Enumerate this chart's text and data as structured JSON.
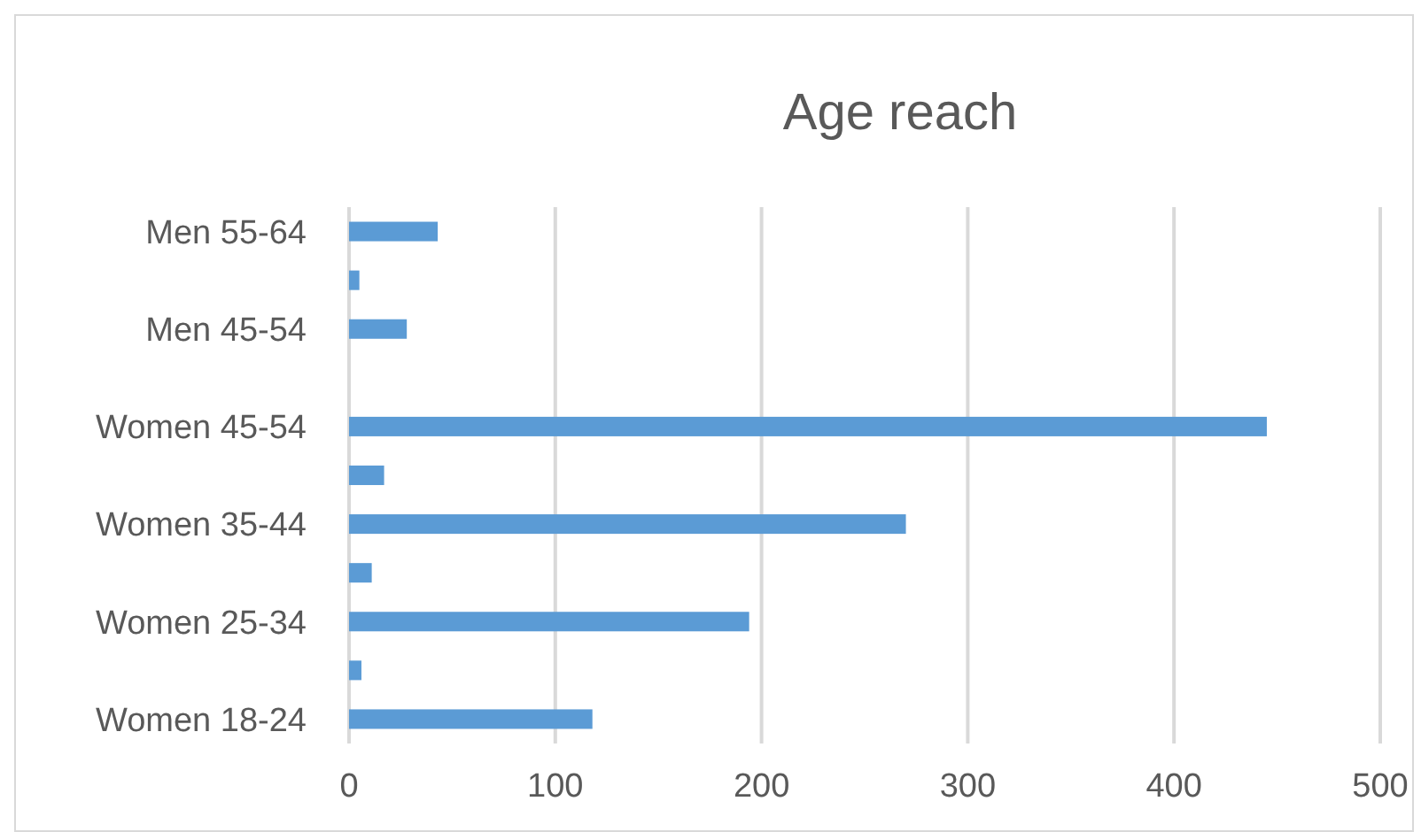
{
  "chart_data": {
    "type": "bar",
    "orientation": "horizontal",
    "title": "Age reach",
    "categories": [
      "Men 55-64",
      null,
      "Men 45-54",
      null,
      "Women 45-54",
      null,
      "Women 35-44",
      null,
      "Women 25-34",
      null,
      "Women 18-24"
    ],
    "values": [
      43,
      5,
      28,
      0,
      445,
      17,
      270,
      11,
      194,
      6,
      118
    ],
    "color": "#5b9bd5",
    "xlim": [
      0,
      500
    ],
    "xticks": [
      0,
      100,
      200,
      300,
      400,
      500
    ],
    "grid": "x"
  }
}
